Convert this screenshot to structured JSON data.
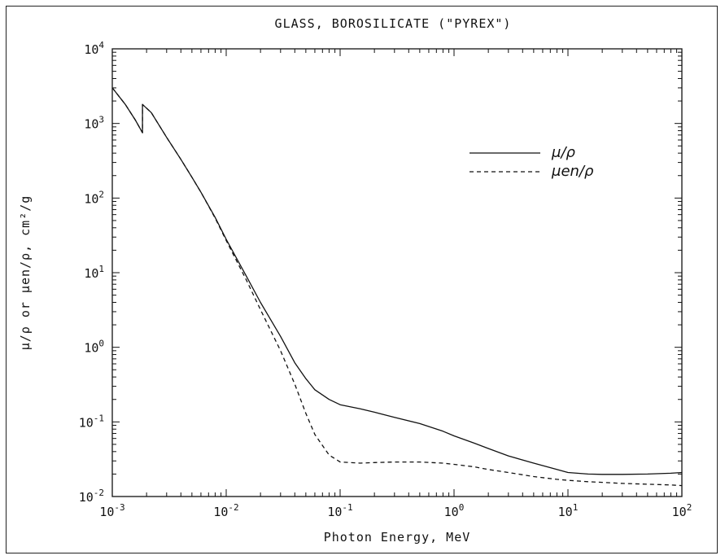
{
  "chart_data": {
    "type": "line",
    "title": "GLASS, BOROSILICATE (\"PYREX\")",
    "xlabel": "Photon Energy, MeV",
    "ylabel": "μ/ρ or μen/ρ, cm²/g",
    "xscale": "log",
    "yscale": "log",
    "xlim": [
      0.001,
      100
    ],
    "ylim": [
      0.01,
      10000
    ],
    "x_ticks": [
      {
        "value": 0.001,
        "base": "10",
        "exp": "-3"
      },
      {
        "value": 0.01,
        "base": "10",
        "exp": "-2"
      },
      {
        "value": 0.1,
        "base": "10",
        "exp": "-1"
      },
      {
        "value": 1,
        "base": "10",
        "exp": "0"
      },
      {
        "value": 10,
        "base": "10",
        "exp": "1"
      },
      {
        "value": 100,
        "base": "10",
        "exp": "2"
      }
    ],
    "y_ticks": [
      {
        "value": 0.01,
        "base": "10",
        "exp": "-2"
      },
      {
        "value": 0.1,
        "base": "10",
        "exp": "-1"
      },
      {
        "value": 1,
        "base": "10",
        "exp": "0"
      },
      {
        "value": 10,
        "base": "10",
        "exp": "1"
      },
      {
        "value": 100,
        "base": "10",
        "exp": "2"
      },
      {
        "value": 1000,
        "base": "10",
        "exp": "3"
      },
      {
        "value": 10000,
        "base": "10",
        "exp": "4"
      }
    ],
    "grid": false,
    "legend": "top-right",
    "series": [
      {
        "name": "μ/ρ",
        "style": "solid",
        "color": "#111111",
        "x": [
          0.001,
          0.0013,
          0.0016,
          0.00184,
          0.00184,
          0.0022,
          0.003,
          0.004,
          0.005,
          0.006,
          0.008,
          0.01,
          0.015,
          0.02,
          0.03,
          0.04,
          0.05,
          0.06,
          0.08,
          0.1,
          0.15,
          0.2,
          0.3,
          0.5,
          0.8,
          1,
          1.5,
          2,
          3,
          5,
          8,
          10,
          15,
          20,
          30,
          50,
          80,
          100
        ],
        "y": [
          3000,
          1800,
          1100,
          750,
          1800,
          1400,
          650,
          330,
          190,
          120,
          55,
          28,
          9,
          4,
          1.4,
          0.62,
          0.38,
          0.27,
          0.2,
          0.17,
          0.15,
          0.135,
          0.115,
          0.095,
          0.075,
          0.065,
          0.052,
          0.044,
          0.035,
          0.028,
          0.023,
          0.021,
          0.02,
          0.0198,
          0.0198,
          0.02,
          0.0205,
          0.021
        ]
      },
      {
        "name": "μen/ρ",
        "style": "dashed",
        "color": "#111111",
        "x": [
          0.001,
          0.0013,
          0.0016,
          0.00184,
          0.00184,
          0.0022,
          0.003,
          0.004,
          0.005,
          0.006,
          0.008,
          0.01,
          0.015,
          0.02,
          0.03,
          0.04,
          0.05,
          0.06,
          0.08,
          0.1,
          0.15,
          0.2,
          0.3,
          0.5,
          0.8,
          1,
          1.5,
          2,
          3,
          5,
          8,
          10,
          15,
          20,
          30,
          50,
          80,
          100
        ],
        "y": [
          3000,
          1800,
          1100,
          750,
          1800,
          1400,
          650,
          330,
          190,
          120,
          54,
          27,
          8,
          3.2,
          0.9,
          0.32,
          0.13,
          0.068,
          0.036,
          0.029,
          0.028,
          0.0285,
          0.029,
          0.029,
          0.028,
          0.027,
          0.025,
          0.023,
          0.021,
          0.0185,
          0.017,
          0.0165,
          0.0158,
          0.0155,
          0.015,
          0.0146,
          0.0143,
          0.014
        ]
      }
    ]
  }
}
